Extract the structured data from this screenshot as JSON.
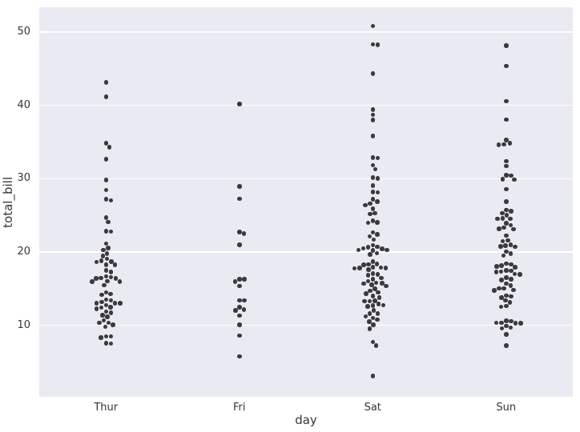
{
  "figure": {
    "background_color": "#ffffff",
    "plot_background_color": "#eaeaf2",
    "grid_color": "#ffffff",
    "point_color": "#3a3a3e",
    "text_color": "#363636"
  },
  "chart_data": {
    "type": "scatter",
    "variant": "swarm-strip",
    "title": "",
    "xlabel": "day",
    "ylabel": "total_bill",
    "categories": [
      "Thur",
      "Fri",
      "Sat",
      "Sun"
    ],
    "yticks": [
      10,
      20,
      30,
      40,
      50
    ],
    "ylim": [
      0.26,
      53.38
    ],
    "grid": true,
    "legend": false,
    "series": [
      {
        "name": "Thur",
        "values": [
          27.2,
          22.76,
          17.29,
          19.44,
          16.66,
          10.07,
          32.68,
          15.98,
          34.83,
          13.03,
          18.28,
          24.71,
          21.16,
          10.65,
          12.43,
          24.08,
          11.69,
          13.42,
          14.26,
          15.95,
          12.48,
          29.8,
          8.52,
          14.52,
          11.38,
          22.82,
          19.08,
          20.27,
          11.17,
          12.26,
          18.26,
          8.51,
          10.33,
          14.15,
          16.0,
          13.16,
          17.47,
          34.3,
          41.19,
          27.05,
          16.43,
          8.35,
          18.64,
          11.87,
          9.78,
          7.51,
          19.81,
          28.44,
          15.48,
          16.58,
          7.56,
          10.34,
          43.11,
          13.0,
          13.51,
          18.71,
          12.74,
          13.0,
          16.4,
          20.53,
          16.47,
          18.78
        ]
      },
      {
        "name": "Fri",
        "values": [
          28.97,
          22.49,
          5.75,
          16.32,
          22.75,
          40.17,
          27.28,
          12.03,
          21.01,
          12.46,
          11.35,
          15.38,
          12.16,
          13.42,
          8.58,
          15.98,
          13.42,
          16.27,
          10.09
        ]
      },
      {
        "name": "Sat",
        "values": [
          20.65,
          17.92,
          20.29,
          15.77,
          39.42,
          19.82,
          17.81,
          13.37,
          12.69,
          21.7,
          19.65,
          9.55,
          18.35,
          20.69,
          17.78,
          24.06,
          16.31,
          16.93,
          18.69,
          31.27,
          16.04,
          38.01,
          26.41,
          11.24,
          48.27,
          20.29,
          13.81,
          11.02,
          18.29,
          17.59,
          16.45,
          3.07,
          20.23,
          15.01,
          12.02,
          17.07,
          26.86,
          25.28,
          14.73,
          10.51,
          44.3,
          22.42,
          20.92,
          15.36,
          20.49,
          25.21,
          18.24,
          14.31,
          14.0,
          7.25,
          50.81,
          15.81,
          31.85,
          16.82,
          32.9,
          17.89,
          14.48,
          26.59,
          38.73,
          24.27,
          12.76,
          30.06,
          25.89,
          48.33,
          13.27,
          28.17,
          12.9,
          28.15,
          11.59,
          7.74,
          30.14,
          20.45,
          13.28,
          22.12,
          24.01,
          15.69,
          11.61,
          10.77,
          15.53,
          10.07,
          12.6,
          32.83,
          35.83,
          29.03,
          27.18,
          22.67,
          17.82
        ]
      },
      {
        "name": "Sun",
        "values": [
          16.99,
          10.34,
          21.01,
          23.68,
          24.59,
          25.29,
          8.77,
          26.88,
          15.04,
          14.78,
          10.27,
          35.26,
          15.42,
          18.43,
          14.83,
          21.58,
          10.33,
          16.29,
          16.97,
          17.46,
          13.94,
          9.68,
          30.4,
          18.29,
          22.23,
          32.4,
          28.55,
          18.04,
          12.54,
          10.29,
          34.81,
          9.94,
          25.56,
          19.49,
          38.07,
          23.95,
          25.71,
          17.31,
          29.93,
          14.07,
          13.13,
          17.26,
          24.55,
          19.77,
          29.85,
          48.17,
          25.0,
          13.39,
          16.49,
          21.5,
          12.66,
          16.21,
          13.81,
          17.51,
          24.52,
          20.76,
          31.71,
          10.59,
          10.63,
          9.6,
          34.63,
          34.65,
          23.33,
          45.35,
          23.17,
          40.55,
          20.69,
          20.9,
          30.46,
          18.15,
          23.1,
          15.69,
          7.25,
          15.06,
          17.92,
          20.08
        ]
      }
    ]
  }
}
